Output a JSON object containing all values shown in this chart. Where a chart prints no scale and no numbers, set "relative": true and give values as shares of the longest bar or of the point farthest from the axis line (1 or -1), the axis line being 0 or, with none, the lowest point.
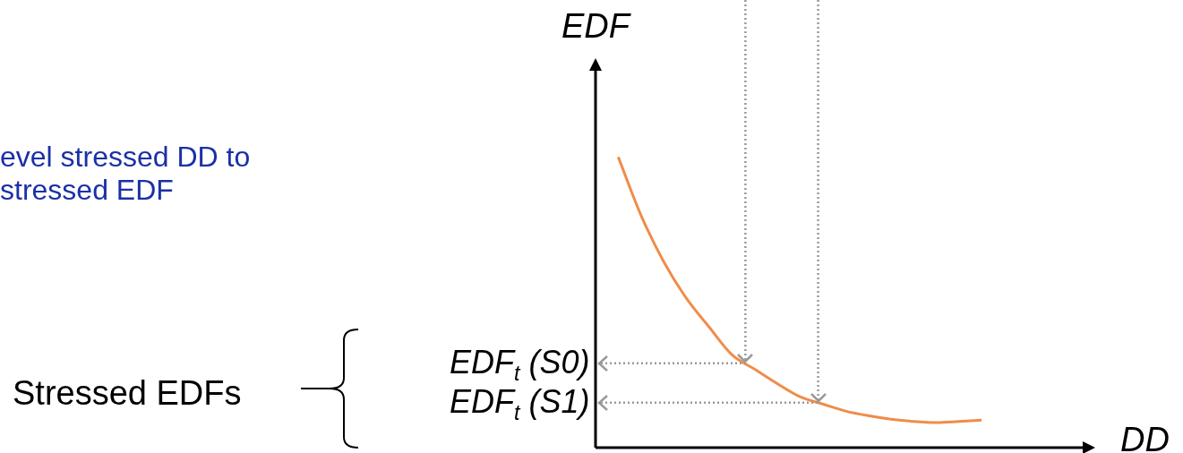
{
  "chart_data": {
    "type": "line",
    "relative": true,
    "ylabel": "EDF",
    "xlabel": "DD",
    "categories": [
      null,
      null,
      null,
      null,
      null,
      null,
      null,
      null,
      null,
      null,
      null,
      null,
      null,
      null,
      null,
      null,
      null,
      null,
      null,
      null,
      null,
      null,
      null
    ],
    "series": [
      {
        "color": "#f08c4a",
        "values": [
          null,
          1.0,
          0.8,
          0.64,
          0.514,
          0.415,
          0.32,
          0.27,
          0.22,
          0.175,
          0.15,
          0.126,
          0.11,
          0.098,
          0.09,
          0.086,
          0.09,
          0.095,
          null,
          null,
          null,
          null,
          null
        ]
      }
    ],
    "ref_lines": [
      {
        "axis": "y",
        "value": 0.29,
        "label": "EDF$_{t}$ (S0)",
        "color": "#9a9a9a",
        "line_style": "dotted"
      },
      {
        "axis": "y",
        "value": 0.155,
        "label": "EDF$_{t}$ (S1)",
        "color": "#9a9a9a",
        "line_style": "dotted"
      }
    ],
    "annotations": [
      "evel stressed DD to\nstressed EDF",
      "Stressed EDFs"
    ]
  }
}
